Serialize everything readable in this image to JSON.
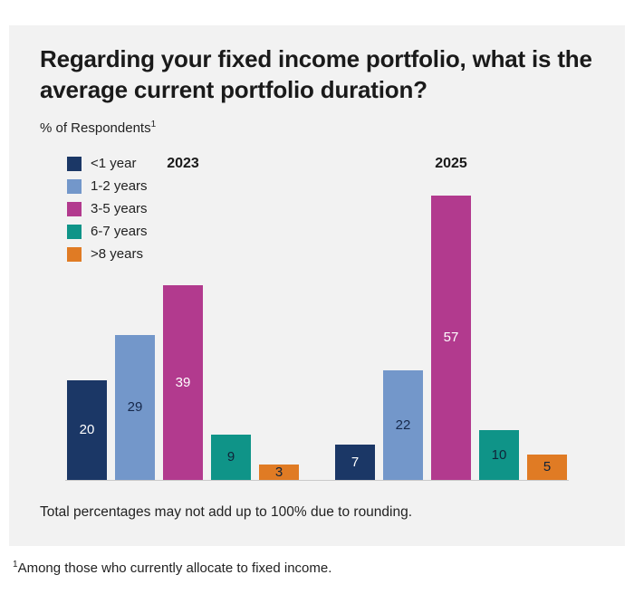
{
  "card": {
    "title": "Regarding your fixed income portfolio, what is the average current portfolio duration?",
    "subtitle": "% of Respondents",
    "subtitle_sup": "1",
    "note": "Total percentages may not add up to 100% due to rounding."
  },
  "footnote": {
    "sup": "1",
    "text": "Among those who currently allocate to fixed income."
  },
  "chart_data": {
    "type": "bar",
    "title": "Regarding your fixed income portfolio, what is the average current portfolio duration?",
    "ylabel": "% of Respondents",
    "groups": [
      "2023",
      "2025"
    ],
    "series": [
      {
        "name": "<1 year",
        "color": "#1b3766",
        "label_color": "#ffffff",
        "values": [
          20,
          7
        ]
      },
      {
        "name": "1-2 years",
        "color": "#7397ca",
        "label_color": "#16284a",
        "values": [
          29,
          22
        ]
      },
      {
        "name": "3-5 years",
        "color": "#b23a8e",
        "label_color": "#ffffff",
        "values": [
          39,
          57
        ]
      },
      {
        "name": "6-7 years",
        "color": "#0f9488",
        "label_color": "#102339",
        "values": [
          9,
          10
        ]
      },
      {
        "name": ">8 years",
        "color": "#e07b24",
        "label_color": "#102339",
        "values": [
          3,
          5
        ]
      }
    ],
    "ylim": [
      0,
      60
    ],
    "legend_position": "top-left",
    "grid": false
  }
}
